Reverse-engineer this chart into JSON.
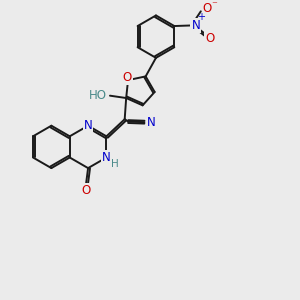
{
  "bg_color": "#ebebeb",
  "bond_color": "#1a1a1a",
  "bond_width": 1.4,
  "atom_colors": {
    "N": "#0000cc",
    "O": "#cc0000",
    "C": "#1a1a1a",
    "H": "#4a8a8a"
  },
  "font_size": 8.5,
  "figsize": [
    3.0,
    3.0
  ],
  "dpi": 100
}
